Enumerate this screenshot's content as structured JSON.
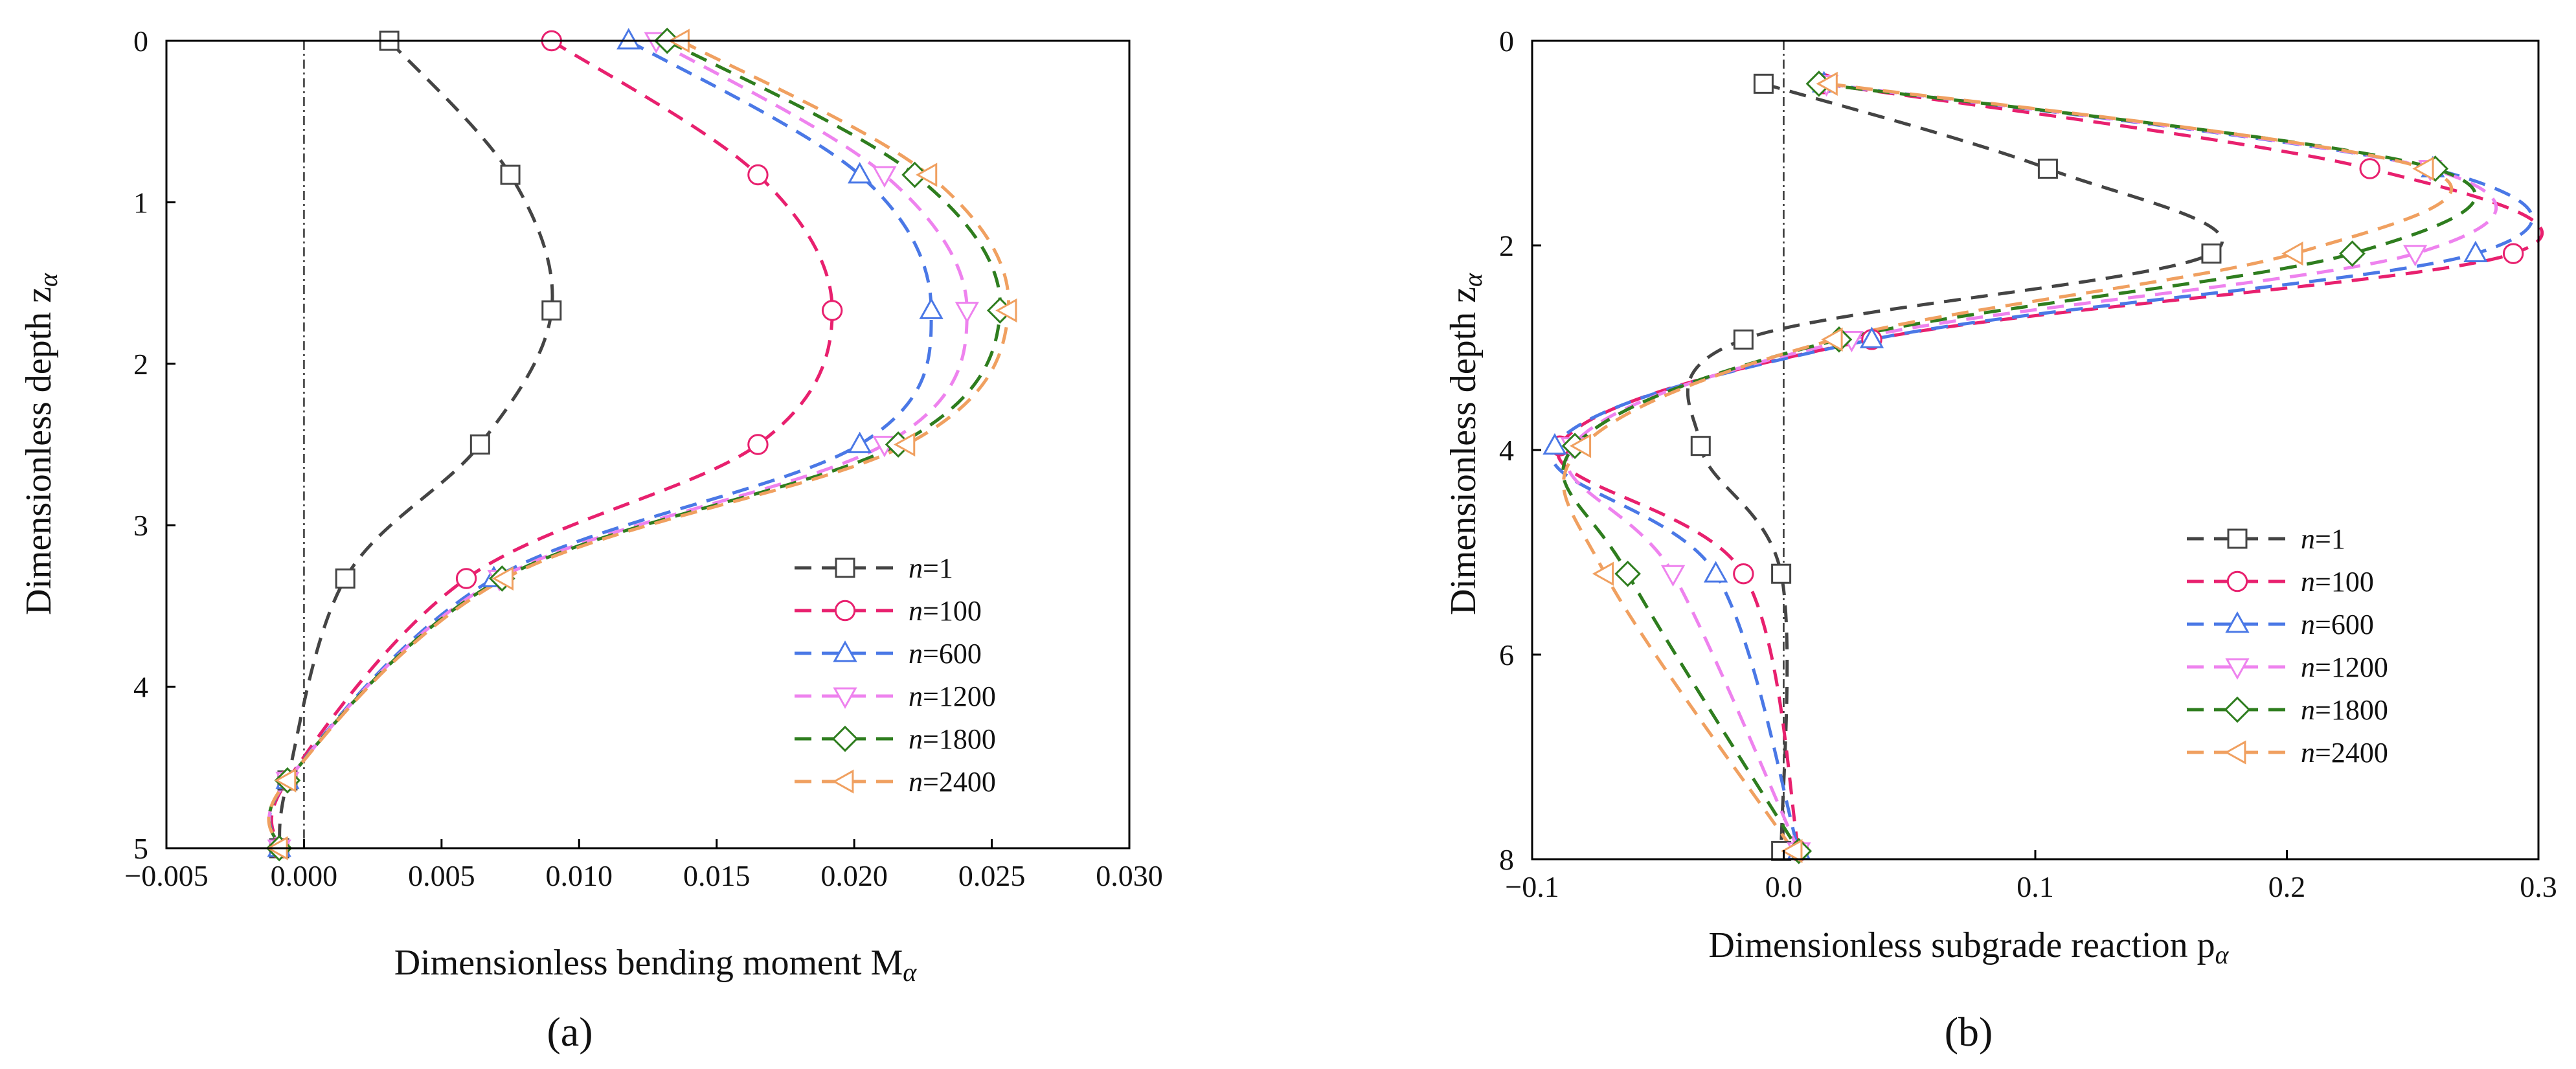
{
  "chart_data": [
    {
      "type": "line",
      "panel_label": "(a)",
      "xlabel": "Dimensionless bending moment M",
      "xlabel_sub": "α",
      "ylabel": "Dimensionless depth z",
      "ylabel_sub": "α",
      "xlim": [
        -0.005,
        0.03
      ],
      "ylim": [
        0,
        5
      ],
      "y_inverted": true,
      "xticks": [
        -0.005,
        0.0,
        0.005,
        0.01,
        0.015,
        0.02,
        0.025,
        0.03
      ],
      "xtick_labels": [
        "−0.005",
        "0.000",
        "0.005",
        "0.010",
        "0.015",
        "0.020",
        "0.025",
        "0.030"
      ],
      "yticks": [
        0,
        1,
        2,
        3,
        4,
        5
      ],
      "ytick_labels": [
        "0",
        "1",
        "2",
        "3",
        "4",
        "5"
      ],
      "reference_line_x": 0,
      "legend_position": "bottom-right",
      "series": [
        {
          "name": "n=1",
          "n_label": "n",
          "n_value": "=1",
          "color": "#444444",
          "marker": "square",
          "x": [
            0.0031,
            0.0075,
            0.009,
            0.0064,
            0.0015,
            -0.0006,
            -0.0009
          ],
          "y": [
            0.0,
            0.83,
            1.67,
            2.5,
            3.33,
            4.58,
            5.0
          ]
        },
        {
          "name": "n=100",
          "n_label": "n",
          "n_value": "=100",
          "color": "#e8206e",
          "marker": "circle",
          "x": [
            0.009,
            0.0165,
            0.0192,
            0.0165,
            0.0059,
            -0.0006,
            -0.0009
          ],
          "y": [
            0.0,
            0.83,
            1.67,
            2.5,
            3.33,
            4.58,
            5.0
          ]
        },
        {
          "name": "n=600",
          "n_label": "n",
          "n_value": "=600",
          "color": "#4a78e6",
          "marker": "triangle-up",
          "x": [
            0.0118,
            0.0202,
            0.0228,
            0.0202,
            0.0069,
            -0.0006,
            -0.0009
          ],
          "y": [
            0.0,
            0.83,
            1.67,
            2.5,
            3.33,
            4.58,
            5.0
          ]
        },
        {
          "name": "n=1200",
          "n_label": "n",
          "n_value": "=1200",
          "color": "#ee82ee",
          "marker": "triangle-down",
          "x": [
            0.0128,
            0.0211,
            0.0241,
            0.0211,
            0.0071,
            -0.0006,
            -0.0009
          ],
          "y": [
            0.0,
            0.83,
            1.67,
            2.5,
            3.33,
            4.58,
            5.0
          ]
        },
        {
          "name": "n=1800",
          "n_label": "n",
          "n_value": "=1800",
          "color": "#2e7d1e",
          "marker": "diamond",
          "x": [
            0.0132,
            0.0222,
            0.0253,
            0.0216,
            0.0072,
            -0.0006,
            -0.0009
          ],
          "y": [
            0.0,
            0.83,
            1.67,
            2.5,
            3.33,
            4.58,
            5.0
          ]
        },
        {
          "name": "n=2400",
          "n_label": "n",
          "n_value": "=2400",
          "color": "#f0a060",
          "marker": "triangle-left",
          "x": [
            0.0137,
            0.0227,
            0.0256,
            0.0219,
            0.0073,
            -0.0006,
            -0.0009
          ],
          "y": [
            0.0,
            0.83,
            1.67,
            2.5,
            3.33,
            4.58,
            5.0
          ]
        }
      ]
    },
    {
      "type": "line",
      "panel_label": "(b)",
      "xlabel": "Dimensionless subgrade reaction p",
      "xlabel_sub": "α",
      "ylabel": "Dimensionless depth z",
      "ylabel_sub": "α",
      "xlim": [
        -0.1,
        0.3
      ],
      "ylim": [
        0,
        8
      ],
      "y_inverted": true,
      "xticks": [
        -0.1,
        0.0,
        0.1,
        0.2,
        0.3
      ],
      "xtick_labels": [
        "−0.1",
        "0.0",
        "0.1",
        "0.2",
        "0.3"
      ],
      "yticks": [
        0,
        2,
        4,
        6,
        8
      ],
      "ytick_labels": [
        "0",
        "2",
        "4",
        "6",
        "8"
      ],
      "reference_line_x": 0,
      "legend_position": "bottom-right",
      "series": [
        {
          "name": "n=1",
          "n_label": "n",
          "n_value": "=1",
          "color": "#444444",
          "marker": "square",
          "x": [
            -0.008,
            0.105,
            0.17,
            -0.016,
            -0.033,
            -0.001,
            -0.001
          ],
          "y": [
            0.42,
            1.25,
            2.08,
            2.92,
            3.96,
            5.21,
            7.92
          ]
        },
        {
          "name": "n=100",
          "n_label": "n",
          "n_value": "=100",
          "color": "#e8206e",
          "marker": "circle",
          "x": [
            0.016,
            0.233,
            0.29,
            0.035,
            -0.089,
            -0.016,
            0.006
          ],
          "y": [
            0.42,
            1.25,
            2.08,
            2.92,
            3.96,
            5.21,
            7.92
          ]
        },
        {
          "name": "n=600",
          "n_label": "n",
          "n_value": "=600",
          "color": "#4a78e6",
          "marker": "triangle-up",
          "x": [
            0.016,
            0.258,
            0.275,
            0.035,
            -0.091,
            -0.027,
            0.006
          ],
          "y": [
            0.42,
            1.25,
            2.08,
            2.92,
            3.96,
            5.21,
            7.92
          ]
        },
        {
          "name": "n=1200",
          "n_label": "n",
          "n_value": "=1200",
          "color": "#ee82ee",
          "marker": "triangle-down",
          "x": [
            0.017,
            0.257,
            0.251,
            0.027,
            -0.084,
            -0.044,
            0.006
          ],
          "y": [
            0.42,
            1.25,
            2.08,
            2.92,
            3.96,
            5.21,
            7.92
          ]
        },
        {
          "name": "n=1800",
          "n_label": "n",
          "n_value": "=1800",
          "color": "#2e7d1e",
          "marker": "diamond",
          "x": [
            0.014,
            0.259,
            0.226,
            0.022,
            -0.083,
            -0.062,
            0.006
          ],
          "y": [
            0.42,
            1.25,
            2.08,
            2.92,
            3.96,
            5.21,
            7.92
          ]
        },
        {
          "name": "n=2400",
          "n_label": "n",
          "n_value": "=2400",
          "color": "#f0a060",
          "marker": "triangle-left",
          "x": [
            0.018,
            0.255,
            0.203,
            0.02,
            -0.08,
            -0.071,
            0.004
          ],
          "y": [
            0.42,
            1.25,
            2.08,
            2.92,
            3.96,
            5.21,
            7.92
          ]
        }
      ]
    }
  ]
}
